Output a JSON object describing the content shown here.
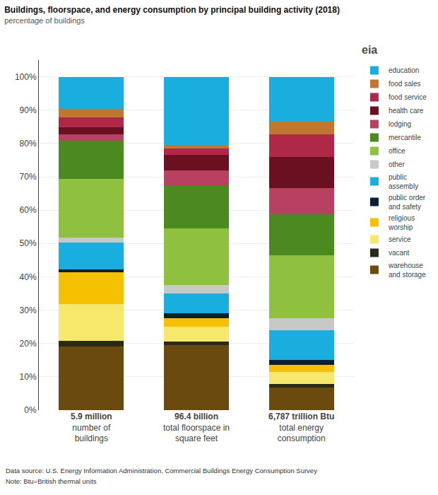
{
  "chart_data": {
    "type": "bar",
    "stacked": true,
    "title": "Buildings, floorspace, and energy consumption by principal building activity (2018)",
    "subtitle": "percentage of buildings",
    "annotations": [
      "eia",
      "Data source: U.S. Energy Information Administration, Commercial Buildings Energy Consumption Survey",
      "Note: Btu=British thermal units"
    ],
    "categories": [
      "5.9 million\nnumber of\nbuildings",
      "96.4 billion\ntotal floorspace in\nsquare feet",
      "6,787 trillion Btu\ntotal energy\nconsumption"
    ],
    "series": [
      {
        "name": "warehouse\nand storage",
        "color": "#6B4A10",
        "values": [
          19.0,
          19.5,
          6.770833333333333
        ]
      },
      {
        "name": "vacant",
        "color": "#2A2A18",
        "values": [
          1.8,
          1.0,
          1.0416666666666667
        ]
      },
      {
        "name": "service",
        "color": "#F5E86A",
        "values": [
          11.0,
          4.5,
          3.6458333333333335
        ]
      },
      {
        "name": "religious\nworship",
        "color": "#F5C000",
        "values": [
          9.5,
          2.5,
          2.0833333333333335
        ]
      },
      {
        "name": "public order\nand safety",
        "color": "#0A2030",
        "values": [
          1.0,
          1.5,
          1.5625
        ]
      },
      {
        "name": "public\nassembly",
        "color": "#1AAEDF",
        "values": [
          8.0,
          6.0,
          8.854166666666666
        ]
      },
      {
        "name": "other",
        "color": "#C8C8C8",
        "values": [
          1.5,
          2.5,
          3.6458333333333335
        ]
      },
      {
        "name": "office",
        "color": "#90C040",
        "values": [
          17.5,
          17.0,
          18.75
        ]
      },
      {
        "name": "mercantile",
        "color": "#4A8A20",
        "values": [
          11.5,
          13.0,
          12.5
        ]
      },
      {
        "name": "lodging",
        "color": "#B84060",
        "values": [
          2.0,
          4.5,
          7.8125
        ]
      },
      {
        "name": "health care",
        "color": "#6A1020",
        "values": [
          2.0,
          4.5,
          9.375
        ]
      },
      {
        "name": "food service",
        "color": "#B02848",
        "values": [
          3.0,
          2.0,
          6.770833333333333
        ]
      },
      {
        "name": "food sales",
        "color": "#C07830",
        "values": [
          2.5,
          1.0,
          3.6458333333333335
        ]
      },
      {
        "name": "education",
        "color": "#1AAEDF",
        "values": [
          9.7,
          20.5,
          13.541666666666666
        ]
      }
    ],
    "ylim": [
      0,
      105
    ],
    "yticks": [
      {
        "value": 0,
        "label": "0%"
      },
      {
        "value": 10,
        "label": "10%"
      },
      {
        "value": 20,
        "label": "20%"
      },
      {
        "value": 30,
        "label": "30%"
      },
      {
        "value": 40,
        "label": "40%"
      },
      {
        "value": 50,
        "label": "50%"
      },
      {
        "value": 60,
        "label": "60%"
      },
      {
        "value": 70,
        "label": "70%"
      },
      {
        "value": 80,
        "label": "80%"
      },
      {
        "value": 90,
        "label": "90%"
      },
      {
        "value": 100,
        "label": "100%"
      }
    ],
    "grid": true,
    "legend": "right"
  }
}
